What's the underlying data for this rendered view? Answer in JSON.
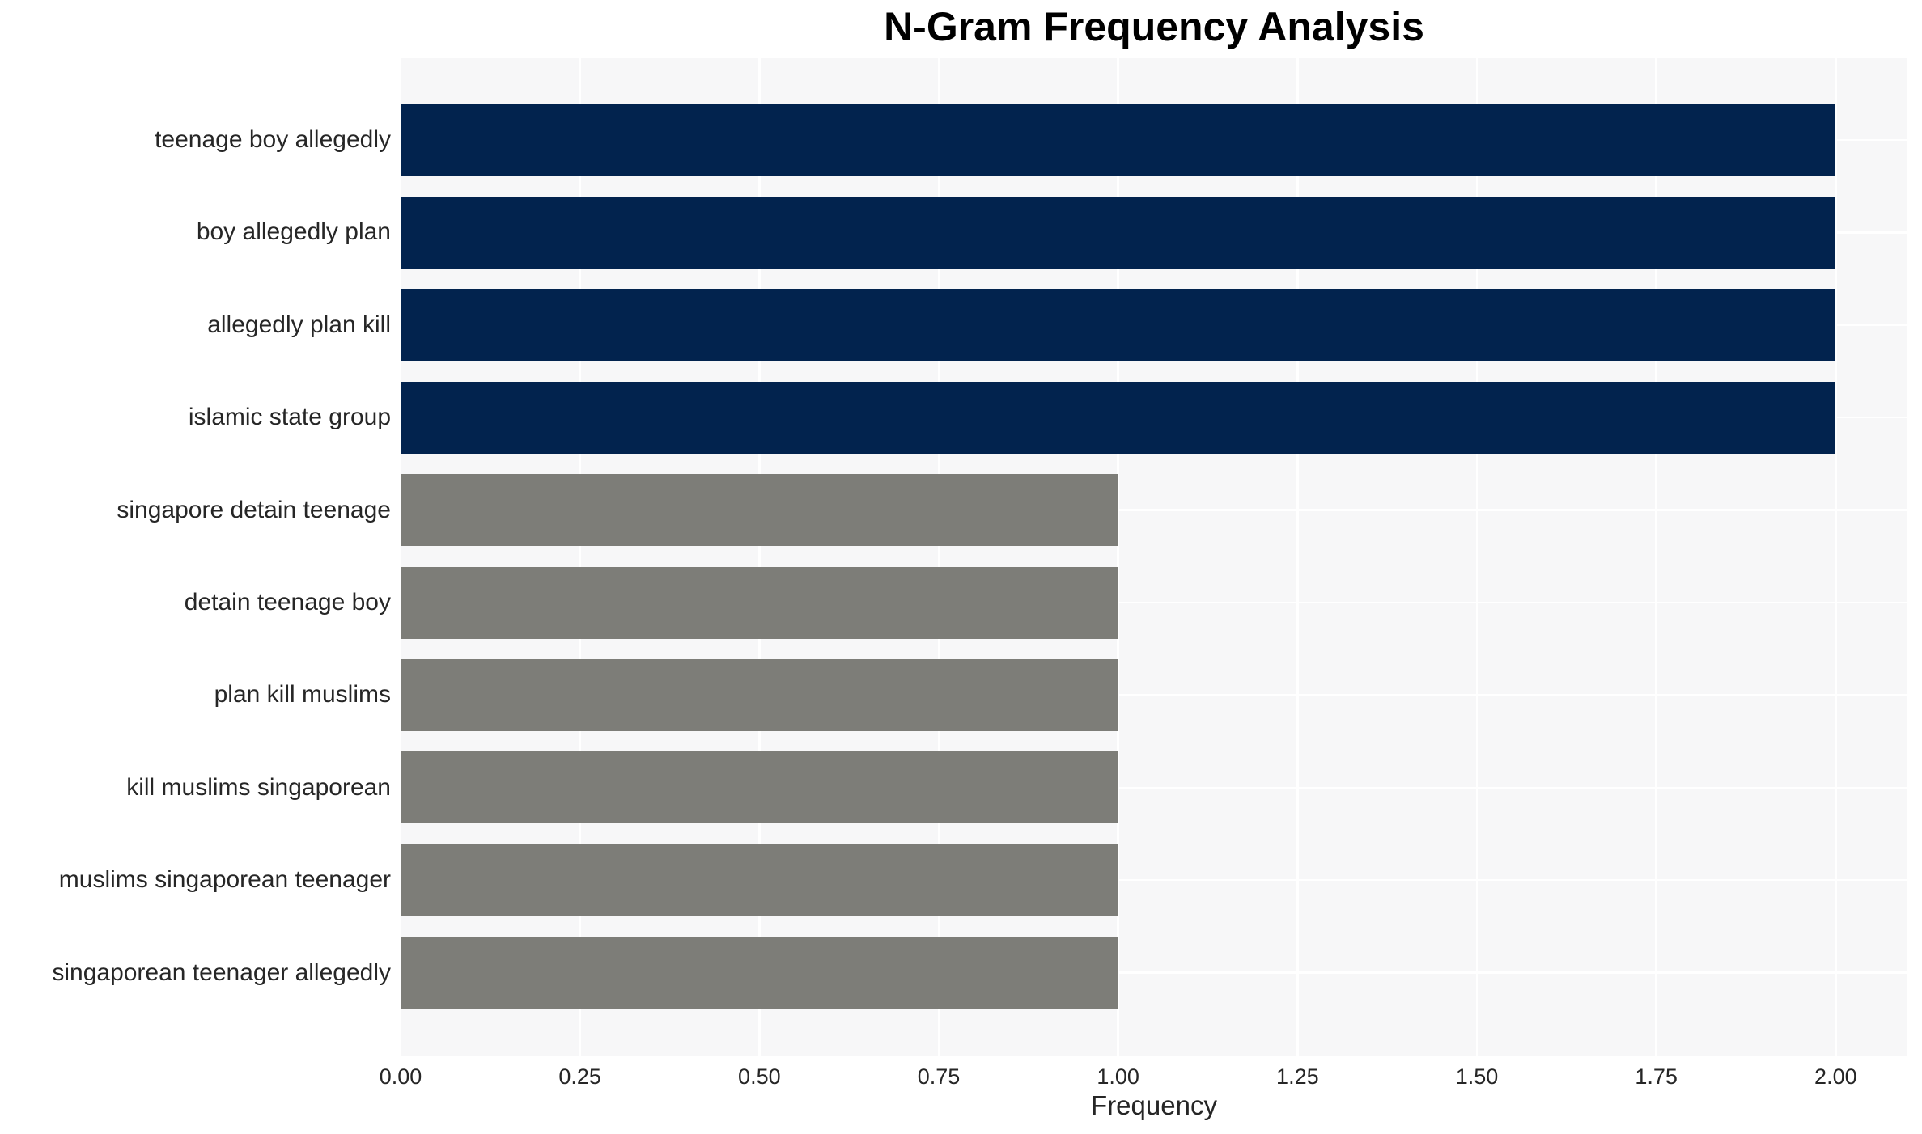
{
  "title": "N-Gram Frequency Analysis",
  "chart_data": {
    "type": "bar",
    "orientation": "horizontal",
    "title": "N-Gram Frequency Analysis",
    "xlabel": "Frequency",
    "ylabel": "",
    "categories": [
      "teenage boy allegedly",
      "boy allegedly plan",
      "allegedly plan kill",
      "islamic state group",
      "singapore detain teenage",
      "detain teenage boy",
      "plan kill muslims",
      "kill muslims singaporean",
      "muslims singaporean teenager",
      "singaporean teenager allegedly"
    ],
    "values": [
      2,
      2,
      2,
      2,
      1,
      1,
      1,
      1,
      1,
      1
    ],
    "bar_colors": [
      "#02234e",
      "#02234e",
      "#02234e",
      "#02234e",
      "#7d7d78",
      "#7d7d78",
      "#7d7d78",
      "#7d7d78",
      "#7d7d78",
      "#7d7d78"
    ],
    "xlim": [
      0,
      2.1
    ],
    "x_tick_step": 0.25,
    "x_tick_labels": [
      "0.00",
      "0.25",
      "0.50",
      "0.75",
      "1.00",
      "1.25",
      "1.50",
      "1.75",
      "2.00"
    ],
    "grid": true,
    "legend": false,
    "colors": {
      "high_frequency_bar": "#02234e",
      "low_frequency_bar": "#7d7d78",
      "plot_background": "#f7f7f8",
      "gridline": "#ffffff",
      "tick_text": "#262626",
      "title_text": "#000000"
    }
  }
}
